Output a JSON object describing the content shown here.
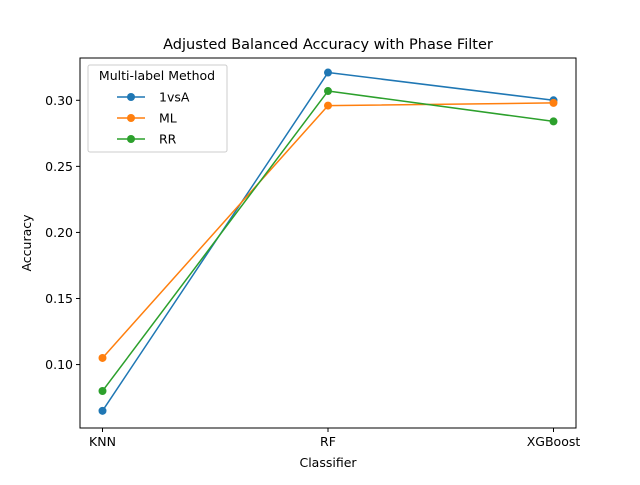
{
  "chart_data": {
    "type": "line",
    "title": "Adjusted Balanced Accuracy with Phase Filter",
    "xlabel": "Classifier",
    "ylabel": "Accuracy",
    "categories": [
      "KNN",
      "RF",
      "XGBoost"
    ],
    "ylim": [
      0.052,
      0.332
    ],
    "yticks": [
      0.1,
      0.15,
      0.2,
      0.25,
      0.3
    ],
    "ytick_labels": [
      "0.10",
      "0.15",
      "0.20",
      "0.25",
      "0.30"
    ],
    "grid": false,
    "legend": {
      "title": "Multi-label Method",
      "placement": "upper-left"
    },
    "series": [
      {
        "name": "1vsA",
        "color": "#1f77b4",
        "values": [
          0.065,
          0.321,
          0.3
        ]
      },
      {
        "name": "ML",
        "color": "#ff7f0e",
        "values": [
          0.105,
          0.296,
          0.298
        ]
      },
      {
        "name": "RR",
        "color": "#2ca02c",
        "values": [
          0.08,
          0.307,
          0.284
        ]
      }
    ]
  }
}
